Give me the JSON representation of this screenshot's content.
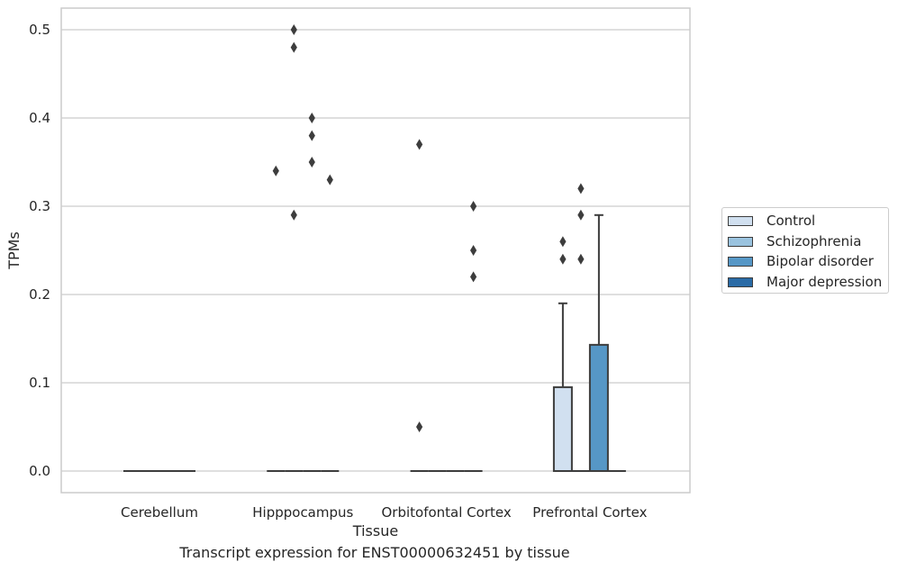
{
  "chart_data": {
    "type": "box",
    "xlabel": "Tissue",
    "ylabel": "TPMs",
    "caption": "Transcript expression for ENST00000632451 by tissue",
    "ylim": [
      -0.025,
      0.525
    ],
    "yticks": [
      "0.0",
      "0.1",
      "0.2",
      "0.3",
      "0.4",
      "0.5"
    ],
    "grid": "horizontal",
    "legend_position": "right",
    "categories": [
      "Cerebellum",
      "Hipppocampus",
      "Orbitofontal Cortex",
      "Prefrontal Cortex"
    ],
    "series": [
      {
        "name": "Control",
        "color": "#d1e0f0"
      },
      {
        "name": "Schizophrenia",
        "color": "#9ac3df"
      },
      {
        "name": "Bipolar disorder",
        "color": "#5697c6"
      },
      {
        "name": "Major depression",
        "color": "#2a6ba6"
      }
    ],
    "boxes": [
      {
        "category": "Cerebellum",
        "series": "Control",
        "q1": 0,
        "median": 0,
        "q3": 0,
        "whisker_low": 0,
        "whisker_high": 0,
        "outliers": []
      },
      {
        "category": "Cerebellum",
        "series": "Schizophrenia",
        "q1": 0,
        "median": 0,
        "q3": 0,
        "whisker_low": 0,
        "whisker_high": 0,
        "outliers": []
      },
      {
        "category": "Cerebellum",
        "series": "Bipolar disorder",
        "q1": 0,
        "median": 0,
        "q3": 0,
        "whisker_low": 0,
        "whisker_high": 0,
        "outliers": []
      },
      {
        "category": "Cerebellum",
        "series": "Major depression",
        "q1": 0,
        "median": 0,
        "q3": 0,
        "whisker_low": 0,
        "whisker_high": 0,
        "outliers": []
      },
      {
        "category": "Hipppocampus",
        "series": "Control",
        "q1": 0,
        "median": 0,
        "q3": 0,
        "whisker_low": 0,
        "whisker_high": 0,
        "outliers": [
          0.34
        ]
      },
      {
        "category": "Hipppocampus",
        "series": "Schizophrenia",
        "q1": 0,
        "median": 0,
        "q3": 0,
        "whisker_low": 0,
        "whisker_high": 0,
        "outliers": [
          0.5,
          0.29,
          0.48
        ]
      },
      {
        "category": "Hipppocampus",
        "series": "Bipolar disorder",
        "q1": 0,
        "median": 0,
        "q3": 0,
        "whisker_low": 0,
        "whisker_high": 0,
        "outliers": [
          0.4,
          0.38,
          0.35
        ]
      },
      {
        "category": "Hipppocampus",
        "series": "Major depression",
        "q1": 0,
        "median": 0,
        "q3": 0,
        "whisker_low": 0,
        "whisker_high": 0,
        "outliers": [
          0.33
        ]
      },
      {
        "category": "Orbitofontal Cortex",
        "series": "Control",
        "q1": 0,
        "median": 0,
        "q3": 0,
        "whisker_low": 0,
        "whisker_high": 0,
        "outliers": [
          0.37,
          0.05
        ]
      },
      {
        "category": "Orbitofontal Cortex",
        "series": "Schizophrenia",
        "q1": 0,
        "median": 0,
        "q3": 0,
        "whisker_low": 0,
        "whisker_high": 0,
        "outliers": []
      },
      {
        "category": "Orbitofontal Cortex",
        "series": "Bipolar disorder",
        "q1": 0,
        "median": 0,
        "q3": 0,
        "whisker_low": 0,
        "whisker_high": 0,
        "outliers": []
      },
      {
        "category": "Orbitofontal Cortex",
        "series": "Major depression",
        "q1": 0,
        "median": 0,
        "q3": 0,
        "whisker_low": 0,
        "whisker_high": 0,
        "outliers": [
          0.3,
          0.25,
          0.22
        ]
      },
      {
        "category": "Prefrontal Cortex",
        "series": "Control",
        "q1": 0,
        "median": 0,
        "q3": 0.095,
        "whisker_low": 0,
        "whisker_high": 0.19,
        "outliers": [
          0.26,
          0.24
        ]
      },
      {
        "category": "Prefrontal Cortex",
        "series": "Schizophrenia",
        "q1": 0,
        "median": 0,
        "q3": 0,
        "whisker_low": 0,
        "whisker_high": 0,
        "outliers": [
          0.32,
          0.29,
          0.24
        ]
      },
      {
        "category": "Prefrontal Cortex",
        "series": "Bipolar disorder",
        "q1": 0,
        "median": 0,
        "q3": 0.143,
        "whisker_low": 0,
        "whisker_high": 0.29,
        "outliers": []
      },
      {
        "category": "Prefrontal Cortex",
        "series": "Major depression",
        "q1": 0,
        "median": 0,
        "q3": 0,
        "whisker_low": 0,
        "whisker_high": 0,
        "outliers": []
      }
    ]
  }
}
